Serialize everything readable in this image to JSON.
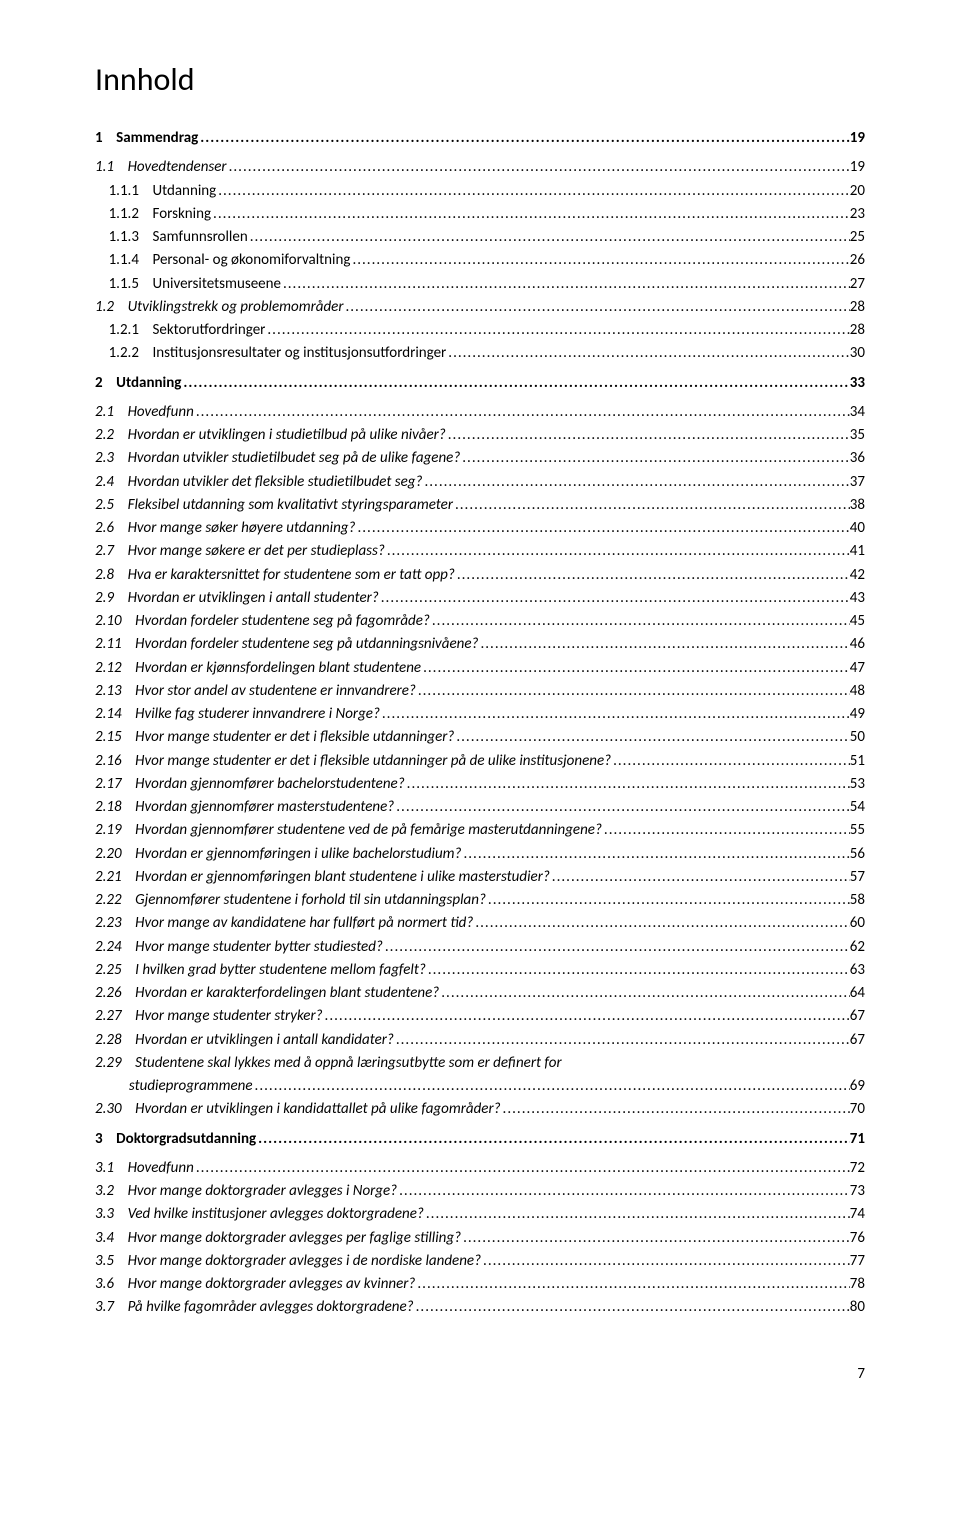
{
  "title": "Innhold",
  "pageNumber": "7",
  "dotChar": ".",
  "colors": {
    "text": "#000000",
    "bg": "#ffffff"
  },
  "fontSizes": {
    "title": 32,
    "body": 15
  },
  "entries": [
    {
      "gapBefore": "none",
      "indent": 0,
      "bold": true,
      "italic": false,
      "num": "1",
      "text": "Sammendrag",
      "page": "19"
    },
    {
      "gapBefore": "sm",
      "indent": 0,
      "bold": false,
      "italic": true,
      "num": "1.1",
      "text": "Hovedtendenser",
      "page": "19"
    },
    {
      "gapBefore": "none",
      "indent": 1,
      "bold": false,
      "italic": false,
      "num": "1.1.1",
      "text": "Utdanning",
      "page": "20"
    },
    {
      "gapBefore": "none",
      "indent": 1,
      "bold": false,
      "italic": false,
      "num": "1.1.2",
      "text": "Forskning",
      "page": "23"
    },
    {
      "gapBefore": "none",
      "indent": 1,
      "bold": false,
      "italic": false,
      "num": "1.1.3",
      "text": "Samfunnsrollen",
      "page": "25"
    },
    {
      "gapBefore": "none",
      "indent": 1,
      "bold": false,
      "italic": false,
      "num": "1.1.4",
      "text": "Personal- og økonomiforvaltning",
      "page": "26"
    },
    {
      "gapBefore": "none",
      "indent": 1,
      "bold": false,
      "italic": false,
      "num": "1.1.5",
      "text": "Universitetsmuseene",
      "page": "27"
    },
    {
      "gapBefore": "none",
      "indent": 0,
      "bold": false,
      "italic": true,
      "num": "1.2",
      "text": "Utviklingstrekk og problemområder",
      "page": "28"
    },
    {
      "gapBefore": "none",
      "indent": 1,
      "bold": false,
      "italic": false,
      "num": "1.2.1",
      "text": "Sektorutfordringer",
      "page": "28"
    },
    {
      "gapBefore": "none",
      "indent": 1,
      "bold": false,
      "italic": false,
      "num": "1.2.2",
      "text": "Institusjonsresultater og institusjonsutfordringer",
      "page": "30"
    },
    {
      "gapBefore": "sm",
      "indent": 0,
      "bold": true,
      "italic": false,
      "num": "2",
      "text": "Utdanning",
      "page": "33"
    },
    {
      "gapBefore": "sm",
      "indent": 0,
      "bold": false,
      "italic": true,
      "num": "2.1",
      "text": "Hovedfunn",
      "page": "34"
    },
    {
      "gapBefore": "none",
      "indent": 0,
      "bold": false,
      "italic": true,
      "num": "2.2",
      "text": "Hvordan er utviklingen i studietilbud på ulike nivåer?",
      "page": "35"
    },
    {
      "gapBefore": "none",
      "indent": 0,
      "bold": false,
      "italic": true,
      "num": "2.3",
      "text": "Hvordan utvikler studietilbudet seg på de ulike fagene?",
      "page": "36"
    },
    {
      "gapBefore": "none",
      "indent": 0,
      "bold": false,
      "italic": true,
      "num": "2.4",
      "text": "Hvordan utvikler det fleksible studietilbudet seg?",
      "page": "37"
    },
    {
      "gapBefore": "none",
      "indent": 0,
      "bold": false,
      "italic": true,
      "num": "2.5",
      "text": "Fleksibel utdanning som kvalitativt styringsparameter",
      "page": "38"
    },
    {
      "gapBefore": "none",
      "indent": 0,
      "bold": false,
      "italic": true,
      "num": "2.6",
      "text": "Hvor mange søker høyere utdanning?",
      "page": "40"
    },
    {
      "gapBefore": "none",
      "indent": 0,
      "bold": false,
      "italic": true,
      "num": "2.7",
      "text": "Hvor mange søkere er det per studieplass?",
      "page": "41"
    },
    {
      "gapBefore": "none",
      "indent": 0,
      "bold": false,
      "italic": true,
      "num": "2.8",
      "text": "Hva er karaktersnittet for studentene som er tatt opp?",
      "page": "42"
    },
    {
      "gapBefore": "none",
      "indent": 0,
      "bold": false,
      "italic": true,
      "num": "2.9",
      "text": "Hvordan er utviklingen i antall studenter?",
      "page": "43"
    },
    {
      "gapBefore": "none",
      "indent": 0,
      "bold": false,
      "italic": true,
      "num": "2.10",
      "text": "Hvordan fordeler studentene seg på fagområde?",
      "page": "45"
    },
    {
      "gapBefore": "none",
      "indent": 0,
      "bold": false,
      "italic": true,
      "num": "2.11",
      "text": "Hvordan fordeler studentene seg på utdanningsnivåene?",
      "page": "46"
    },
    {
      "gapBefore": "none",
      "indent": 0,
      "bold": false,
      "italic": true,
      "num": "2.12",
      "text": "Hvordan er kjønnsfordelingen blant studentene",
      "page": "47"
    },
    {
      "gapBefore": "none",
      "indent": 0,
      "bold": false,
      "italic": true,
      "num": "2.13",
      "text": "Hvor stor andel av studentene er innvandrere?",
      "page": "48"
    },
    {
      "gapBefore": "none",
      "indent": 0,
      "bold": false,
      "italic": true,
      "num": "2.14",
      "text": "Hvilke fag studerer innvandrere i Norge?",
      "page": "49"
    },
    {
      "gapBefore": "none",
      "indent": 0,
      "bold": false,
      "italic": true,
      "num": "2.15",
      "text": "Hvor mange studenter er det i fleksible utdanninger?",
      "page": "50"
    },
    {
      "gapBefore": "none",
      "indent": 0,
      "bold": false,
      "italic": true,
      "num": "2.16",
      "text": "Hvor mange studenter er det i fleksible utdanninger på de ulike institusjonene?",
      "page": "51"
    },
    {
      "gapBefore": "none",
      "indent": 0,
      "bold": false,
      "italic": true,
      "num": "2.17",
      "text": "Hvordan gjennomfører bachelorstudentene?",
      "page": "53"
    },
    {
      "gapBefore": "none",
      "indent": 0,
      "bold": false,
      "italic": true,
      "num": "2.18",
      "text": "Hvordan gjennomfører masterstudentene?",
      "page": "54"
    },
    {
      "gapBefore": "none",
      "indent": 0,
      "bold": false,
      "italic": true,
      "num": "2.19",
      "text": "Hvordan gjennomfører studentene ved de på femårige masterutdanningene?",
      "page": "55"
    },
    {
      "gapBefore": "none",
      "indent": 0,
      "bold": false,
      "italic": true,
      "num": "2.20",
      "text": "Hvordan er gjennomføringen i ulike bachelorstudium?",
      "page": "56"
    },
    {
      "gapBefore": "none",
      "indent": 0,
      "bold": false,
      "italic": true,
      "num": "2.21",
      "text": "Hvordan er gjennomføringen blant studentene i ulike masterstudier?",
      "page": "57"
    },
    {
      "gapBefore": "none",
      "indent": 0,
      "bold": false,
      "italic": true,
      "num": "2.22",
      "text": "Gjennomfører studentene i forhold til sin utdanningsplan?",
      "page": "58"
    },
    {
      "gapBefore": "none",
      "indent": 0,
      "bold": false,
      "italic": true,
      "num": "2.23",
      "text": "Hvor mange av kandidatene har fullført på normert tid?",
      "page": "60"
    },
    {
      "gapBefore": "none",
      "indent": 0,
      "bold": false,
      "italic": true,
      "num": "2.24",
      "text": "Hvor mange studenter bytter studiested?",
      "page": "62"
    },
    {
      "gapBefore": "none",
      "indent": 0,
      "bold": false,
      "italic": true,
      "num": "2.25",
      "text": "I hvilken grad bytter studentene mellom fagfelt?",
      "page": "63"
    },
    {
      "gapBefore": "none",
      "indent": 0,
      "bold": false,
      "italic": true,
      "num": "2.26",
      "text": "Hvordan er karakterfordelingen blant studentene?",
      "page": "64"
    },
    {
      "gapBefore": "none",
      "indent": 0,
      "bold": false,
      "italic": true,
      "num": "2.27",
      "text": "Hvor mange studenter stryker?",
      "page": "67"
    },
    {
      "gapBefore": "none",
      "indent": 0,
      "bold": false,
      "italic": true,
      "num": "2.28",
      "text": "Hvordan er utviklingen i antall kandidater?",
      "page": "67"
    },
    {
      "gapBefore": "none",
      "indent": 0,
      "bold": false,
      "italic": true,
      "num": "2.29",
      "text": "Studentene skal lykkes med å oppnå læringsutbytte som er definert for",
      "page": ""
    },
    {
      "gapBefore": "none",
      "indent": 2,
      "bold": false,
      "italic": true,
      "num": "",
      "text": "studieprogrammene",
      "page": "69"
    },
    {
      "gapBefore": "none",
      "indent": 0,
      "bold": false,
      "italic": true,
      "num": "2.30",
      "text": "Hvordan er utviklingen i kandidattallet på ulike fagområder?",
      "page": "70"
    },
    {
      "gapBefore": "sm",
      "indent": 0,
      "bold": true,
      "italic": false,
      "num": "3",
      "text": "Doktorgradsutdanning",
      "page": "71"
    },
    {
      "gapBefore": "sm",
      "indent": 0,
      "bold": false,
      "italic": true,
      "num": "3.1",
      "text": "Hovedfunn",
      "page": "72"
    },
    {
      "gapBefore": "none",
      "indent": 0,
      "bold": false,
      "italic": true,
      "num": "3.2",
      "text": "Hvor mange doktorgrader avlegges i Norge?",
      "page": "73"
    },
    {
      "gapBefore": "none",
      "indent": 0,
      "bold": false,
      "italic": true,
      "num": "3.3",
      "text": "Ved hvilke institusjoner avlegges doktorgradene?",
      "page": "74"
    },
    {
      "gapBefore": "none",
      "indent": 0,
      "bold": false,
      "italic": true,
      "num": "3.4",
      "text": "Hvor mange doktorgrader avlegges per faglige stilling?",
      "page": "76"
    },
    {
      "gapBefore": "none",
      "indent": 0,
      "bold": false,
      "italic": true,
      "num": "3.5",
      "text": "Hvor mange doktorgrader avlegges i de nordiske landene?",
      "page": "77"
    },
    {
      "gapBefore": "none",
      "indent": 0,
      "bold": false,
      "italic": true,
      "num": "3.6",
      "text": "Hvor mange doktorgrader avlegges av kvinner?",
      "page": "78"
    },
    {
      "gapBefore": "none",
      "indent": 0,
      "bold": false,
      "italic": true,
      "num": "3.7",
      "text": "På hvilke fagområder avlegges doktorgradene?",
      "page": "80"
    }
  ]
}
